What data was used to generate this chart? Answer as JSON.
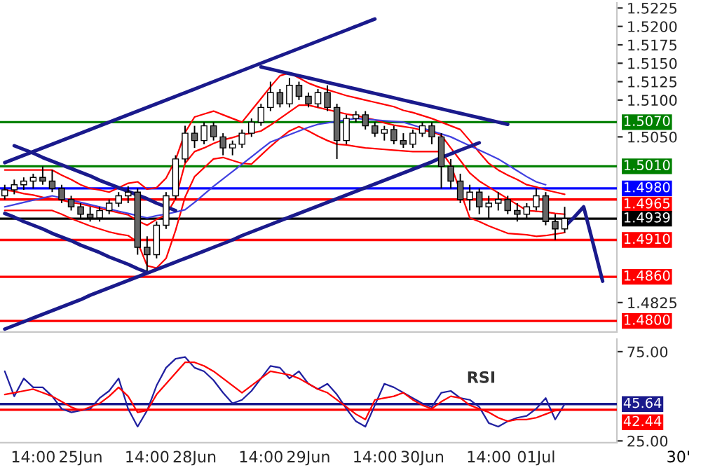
{
  "chart_data": [
    {
      "type": "candlestick",
      "ylim": [
        1.4785,
        1.5232
      ],
      "tick_labels": "y",
      "yticks": [
        {
          "value": 1.4825,
          "label": "1.4825"
        },
        {
          "value": 1.505,
          "label": "1.5050"
        },
        {
          "value": 1.51,
          "label": "1.5100"
        },
        {
          "value": 1.5125,
          "label": "1.5125"
        },
        {
          "value": 1.515,
          "label": "1.5150"
        },
        {
          "value": 1.5175,
          "label": "1.5175"
        },
        {
          "value": 1.52,
          "label": "1.5200"
        },
        {
          "value": 1.5225,
          "label": "1.5225"
        }
      ],
      "categories": [
        null,
        null,
        null,
        null,
        null,
        null,
        null,
        null,
        null,
        null,
        null,
        null,
        null,
        null,
        null,
        null,
        null,
        null,
        null,
        null,
        null,
        null,
        null,
        null,
        null,
        null,
        null,
        null,
        null,
        null,
        null,
        null,
        null,
        null,
        null,
        null,
        null,
        null,
        null,
        null,
        null,
        null,
        null,
        null,
        null,
        null,
        null,
        null,
        null,
        null,
        null,
        null,
        null,
        null,
        null,
        null,
        null,
        null,
        null,
        null,
        null,
        null,
        null,
        null,
        null
      ],
      "ohlc": [
        [
          1.497,
          1.4985,
          1.4965,
          1.4978
        ],
        [
          1.4978,
          1.4992,
          1.4972,
          1.4985
        ],
        [
          1.4985,
          1.4995,
          1.4978,
          1.499
        ],
        [
          1.499,
          1.5,
          1.498,
          1.4995
        ],
        [
          1.4995,
          1.501,
          1.4985,
          1.499
        ],
        [
          1.499,
          1.5005,
          1.4975,
          1.498
        ],
        [
          1.498,
          1.4985,
          1.496,
          1.4965
        ],
        [
          1.4965,
          1.497,
          1.495,
          1.4955
        ],
        [
          1.4955,
          1.496,
          1.494,
          1.4945
        ],
        [
          1.4945,
          1.4955,
          1.4935,
          1.494
        ],
        [
          1.494,
          1.4955,
          1.4935,
          1.495
        ],
        [
          1.495,
          1.4965,
          1.4945,
          1.496
        ],
        [
          1.496,
          1.4975,
          1.4955,
          1.497
        ],
        [
          1.497,
          1.4983,
          1.496,
          1.4975
        ],
        [
          1.4975,
          1.498,
          1.489,
          1.49
        ],
        [
          1.49,
          1.4915,
          1.4868,
          1.489
        ],
        [
          1.489,
          1.4935,
          1.4885,
          1.493
        ],
        [
          1.493,
          1.4975,
          1.4925,
          1.497
        ],
        [
          1.497,
          1.5025,
          1.4965,
          1.502
        ],
        [
          1.502,
          1.5065,
          1.5015,
          1.5055
        ],
        [
          1.5055,
          1.5065,
          1.5035,
          1.5045
        ],
        [
          1.5045,
          1.507,
          1.504,
          1.5065
        ],
        [
          1.5065,
          1.507,
          1.5045,
          1.505
        ],
        [
          1.505,
          1.5055,
          1.5025,
          1.5035
        ],
        [
          1.5035,
          1.5045,
          1.5025,
          1.504
        ],
        [
          1.504,
          1.506,
          1.5035,
          1.5055
        ],
        [
          1.5055,
          1.5075,
          1.505,
          1.507
        ],
        [
          1.507,
          1.5095,
          1.5065,
          1.509
        ],
        [
          1.509,
          1.5125,
          1.5085,
          1.511
        ],
        [
          1.511,
          1.5115,
          1.509,
          1.5095
        ],
        [
          1.5095,
          1.513,
          1.509,
          1.512
        ],
        [
          1.512,
          1.5125,
          1.51,
          1.5105
        ],
        [
          1.5105,
          1.511,
          1.509,
          1.5095
        ],
        [
          1.5095,
          1.5115,
          1.509,
          1.511
        ],
        [
          1.511,
          1.512,
          1.5085,
          1.509
        ],
        [
          1.509,
          1.5095,
          1.502,
          1.5045
        ],
        [
          1.5045,
          1.508,
          1.504,
          1.5075
        ],
        [
          1.5075,
          1.5085,
          1.507,
          1.508
        ],
        [
          1.508,
          1.5085,
          1.506,
          1.5065
        ],
        [
          1.5065,
          1.507,
          1.505,
          1.5055
        ],
        [
          1.5055,
          1.5065,
          1.5045,
          1.506
        ],
        [
          1.506,
          1.5065,
          1.504,
          1.5045
        ],
        [
          1.5045,
          1.5055,
          1.5035,
          1.504
        ],
        [
          1.504,
          1.506,
          1.5035,
          1.5055
        ],
        [
          1.5055,
          1.507,
          1.505,
          1.5065
        ],
        [
          1.5065,
          1.507,
          1.504,
          1.505
        ],
        [
          1.505,
          1.5055,
          1.498,
          1.501
        ],
        [
          1.501,
          1.502,
          1.498,
          1.499
        ],
        [
          1.499,
          1.5,
          1.496,
          1.4965
        ],
        [
          1.4965,
          1.4985,
          1.495,
          1.4975
        ],
        [
          1.4975,
          1.498,
          1.4945,
          1.4955
        ],
        [
          1.4955,
          1.497,
          1.494,
          1.496
        ],
        [
          1.496,
          1.4975,
          1.495,
          1.4965
        ],
        [
          1.4965,
          1.497,
          1.4945,
          1.495
        ],
        [
          1.495,
          1.496,
          1.4935,
          1.4945
        ],
        [
          1.4945,
          1.496,
          1.494,
          1.4955
        ],
        [
          1.4955,
          1.498,
          1.495,
          1.497
        ],
        [
          1.497,
          1.4975,
          1.493,
          1.4935
        ],
        [
          1.4935,
          1.4945,
          1.491,
          1.4925
        ],
        [
          1.4925,
          1.4955,
          1.492,
          1.4939
        ],
        null,
        null,
        null,
        null,
        null
      ],
      "series": [
        {
          "type": "line",
          "color": "#ff0000",
          "values": [
            1.5005,
            1.5005,
            1.5005,
            1.5005,
            1.5005,
            1.5005,
            1.4998,
            1.4992,
            1.4985,
            1.498,
            1.4978,
            1.4975,
            1.4981,
            1.4987,
            1.4989,
            1.4979,
            1.4981,
            1.4994,
            1.5019,
            1.5056,
            1.5077,
            1.5081,
            1.5085,
            1.508,
            1.5075,
            1.507,
            1.5086,
            1.5102,
            1.5118,
            1.5133,
            1.5137,
            1.513,
            1.5123,
            1.5118,
            1.5114,
            1.511,
            1.5106,
            1.5103,
            1.51,
            1.5097,
            1.5094,
            1.5091,
            1.5086,
            1.5083,
            1.5079,
            1.5075,
            1.507,
            1.5065,
            1.506,
            1.5045,
            1.5029,
            1.5014,
            1.5005,
            1.4998,
            1.4992,
            1.4985,
            1.4982,
            1.4978,
            1.4975,
            1.4972,
            null,
            null,
            null,
            null,
            null
          ]
        },
        {
          "type": "line",
          "color": "#ff0000",
          "values": [
            1.495,
            1.495,
            1.495,
            1.495,
            1.495,
            1.495,
            1.4945,
            1.4939,
            1.4934,
            1.4929,
            1.4925,
            1.4921,
            1.4918,
            1.4916,
            1.4907,
            1.4875,
            1.4872,
            1.4885,
            1.4923,
            1.4968,
            1.4996,
            1.5008,
            1.502,
            1.5022,
            1.5018,
            1.5014,
            1.5013,
            1.5025,
            1.5037,
            1.5048,
            1.5058,
            1.5064,
            1.5058,
            1.5051,
            1.5045,
            1.504,
            1.5039,
            1.5037,
            1.5035,
            1.5034,
            1.5033,
            1.5032,
            1.5031,
            1.503,
            1.503,
            1.503,
            1.503,
            1.5012,
            1.4976,
            1.494,
            1.4935,
            1.4929,
            1.4924,
            1.4919,
            1.4918,
            1.4917,
            1.4915,
            1.4916,
            1.4918,
            1.492,
            null,
            null,
            null,
            null,
            null
          ]
        },
        {
          "type": "line",
          "color": "#ff0000",
          "values": [
            1.4978,
            1.4976,
            1.4973,
            1.4971,
            1.4968,
            1.4966,
            1.4964,
            1.4961,
            1.4959,
            1.4956,
            1.4953,
            1.495,
            1.4947,
            1.4944,
            1.4936,
            1.493,
            1.4938,
            1.4944,
            1.4966,
            1.5014,
            1.503,
            1.5035,
            1.5041,
            1.5046,
            1.5049,
            1.5053,
            1.5055,
            1.5058,
            1.5066,
            1.5075,
            1.5084,
            1.5093,
            1.5093,
            1.509,
            1.5087,
            1.5084,
            1.5081,
            1.5079,
            1.5076,
            1.5073,
            1.5069,
            1.5066,
            1.5064,
            1.5062,
            1.5059,
            1.5057,
            1.5052,
            1.5035,
            1.5018,
            1.5001,
            1.499,
            1.4982,
            1.4974,
            1.4966,
            1.4958,
            1.495,
            1.4949,
            1.4948,
            1.4946,
            1.4945,
            null,
            null,
            null,
            null,
            null
          ]
        },
        {
          "type": "line",
          "color": "#4040e0",
          "values": [
            1.4955,
            1.4958,
            1.4961,
            1.4964,
            1.4967,
            1.497,
            1.4967,
            1.4964,
            1.4961,
            1.4958,
            1.4955,
            1.4952,
            1.4949,
            1.4946,
            1.4943,
            1.494,
            1.4943,
            1.4945,
            1.4948,
            1.4951,
            1.4961,
            1.4972,
            1.4983,
            1.4993,
            1.5003,
            1.5013,
            1.5023,
            1.5033,
            1.5043,
            1.5048,
            1.5053,
            1.5058,
            1.5063,
            1.5067,
            1.5069,
            1.5071,
            1.5073,
            1.5075,
            1.5074,
            1.5073,
            1.5072,
            1.5071,
            1.507,
            1.5066,
            1.5062,
            1.5058,
            1.5054,
            1.505,
            1.5044,
            1.5038,
            1.5032,
            1.5026,
            1.502,
            1.5012,
            1.5004,
            1.4996,
            1.4989,
            1.4985,
            null,
            null,
            null,
            null,
            null,
            null,
            null
          ]
        },
        {
          "type": "line",
          "color": "#1a1a8c",
          "values": [
            1.5015,
            1.502,
            1.5025,
            1.503,
            1.5035,
            1.504,
            1.5045,
            1.505,
            1.5055,
            1.506,
            1.5065,
            1.507,
            1.5075,
            1.508,
            1.5085,
            1.509,
            1.5095,
            1.51,
            1.5105,
            1.511,
            1.5115,
            1.512,
            1.5125,
            1.513,
            1.5135,
            1.514,
            1.5145,
            1.515,
            1.5155,
            1.516,
            1.5165,
            1.517,
            1.5175,
            1.518,
            1.5185,
            1.519,
            1.5195,
            1.52,
            1.5205,
            1.521,
            null,
            null,
            null,
            null,
            null,
            null,
            null,
            null,
            null,
            null,
            null,
            null,
            null,
            null,
            null,
            null,
            null,
            null,
            null,
            null,
            null,
            null,
            null,
            null,
            null
          ]
        },
        {
          "type": "line",
          "color": "#1a1a8c",
          "values": [
            1.4789,
            1.4794,
            1.4799,
            1.4804,
            1.4809,
            1.4814,
            1.4819,
            1.4824,
            1.4829,
            1.4835,
            1.484,
            1.4845,
            1.485,
            1.4855,
            1.486,
            1.4865,
            1.487,
            1.4875,
            1.488,
            1.4885,
            1.489,
            1.4895,
            1.49,
            1.4905,
            1.491,
            1.4916,
            1.4921,
            1.4926,
            1.4931,
            1.4936,
            1.4941,
            1.4946,
            1.4951,
            1.4956,
            1.4961,
            1.4966,
            1.4971,
            1.4976,
            1.4981,
            1.4986,
            1.4991,
            1.4996,
            1.5001,
            1.5006,
            1.5011,
            1.5016,
            1.5022,
            1.5027,
            1.5032,
            1.5037,
            1.5042,
            null,
            null,
            null,
            null,
            null,
            null,
            null,
            null,
            null,
            null,
            null,
            null,
            null,
            null
          ]
        },
        {
          "type": "line",
          "color": "#1a1a8c",
          "values": [
            null,
            1.5038,
            1.5033,
            1.5028,
            1.5022,
            1.5017,
            1.5012,
            1.5007,
            1.5002,
            1.4997,
            1.4991,
            1.4986,
            1.4981,
            1.4976,
            1.4971,
            1.4966,
            1.496,
            1.4955,
            1.495,
            null,
            null,
            null,
            null,
            null,
            null,
            null,
            null,
            null,
            null,
            null,
            null,
            null,
            null,
            null,
            null,
            null,
            null,
            null,
            null,
            null,
            null,
            null,
            null,
            null,
            null,
            null,
            null,
            null,
            null,
            null,
            null,
            null,
            null,
            null,
            null,
            null,
            null,
            null,
            null,
            null,
            null,
            null,
            null,
            null,
            null
          ]
        },
        {
          "type": "line",
          "color": "#1a1a8c",
          "values": [
            1.4946,
            1.4941,
            1.4935,
            1.493,
            1.4925,
            1.4919,
            1.4914,
            1.4909,
            1.4903,
            1.4898,
            1.4893,
            1.4887,
            1.4882,
            1.4877,
            1.4871,
            1.4866,
            null,
            null,
            null,
            null,
            null,
            null,
            null,
            null,
            null,
            null,
            null,
            null,
            null,
            null,
            null,
            null,
            null,
            null,
            null,
            null,
            null,
            null,
            null,
            null,
            null,
            null,
            null,
            null,
            null,
            null,
            null,
            null,
            null,
            null,
            null,
            null,
            null,
            null,
            null,
            null,
            null,
            null,
            null,
            null,
            null,
            null,
            null,
            null,
            null
          ]
        },
        {
          "type": "line",
          "color": "#1a1a8c",
          "values": [
            null,
            null,
            null,
            null,
            null,
            null,
            null,
            null,
            null,
            null,
            null,
            null,
            null,
            null,
            null,
            null,
            null,
            null,
            null,
            null,
            null,
            null,
            null,
            null,
            null,
            null,
            null,
            1.5145,
            1.5142,
            1.5139,
            1.5136,
            1.5133,
            1.513,
            1.5127,
            1.5124,
            1.5121,
            1.5118,
            1.5115,
            1.5112,
            1.5109,
            1.5106,
            1.5103,
            1.51,
            1.5097,
            1.5094,
            1.5091,
            1.5088,
            1.5085,
            1.5082,
            1.5079,
            1.5076,
            1.5073,
            1.507,
            1.5067,
            null,
            null,
            null,
            null,
            null,
            null,
            null,
            null,
            null,
            null,
            null
          ]
        },
        {
          "type": "line",
          "color": "#1a1a8c",
          "values": [
            null,
            null,
            null,
            null,
            null,
            null,
            null,
            null,
            null,
            null,
            null,
            null,
            null,
            null,
            null,
            null,
            null,
            null,
            null,
            null,
            null,
            null,
            null,
            null,
            null,
            null,
            null,
            null,
            null,
            null,
            null,
            null,
            null,
            null,
            null,
            null,
            null,
            null,
            null,
            null,
            null,
            null,
            null,
            null,
            null,
            null,
            null,
            null,
            null,
            null,
            null,
            null,
            null,
            null,
            null,
            null,
            null,
            null,
            null,
            1.4928,
            1.4941,
            1.4955,
            1.4905,
            1.4854,
            null
          ]
        }
      ],
      "ref_lines": [
        {
          "axis": "y",
          "value": 1.507,
          "label": "1.5070",
          "color": "#008000"
        },
        {
          "axis": "y",
          "value": 1.501,
          "label": "1.5010",
          "color": "#008000"
        },
        {
          "axis": "y",
          "value": 1.498,
          "label": "1.4980",
          "color": "#0000ff"
        },
        {
          "axis": "y",
          "value": 1.4965,
          "label": "1.4965",
          "color": "#ff0000"
        },
        {
          "axis": "y",
          "value": 1.4939,
          "label": "1.4939",
          "color": "#000000"
        },
        {
          "axis": "y",
          "value": 1.491,
          "label": "1.4910",
          "color": "#ff0000"
        },
        {
          "axis": "y",
          "value": 1.486,
          "label": "1.4860",
          "color": "#ff0000"
        },
        {
          "axis": "y",
          "value": 1.48,
          "label": "1.4800",
          "color": "#ff0000"
        }
      ]
    },
    {
      "type": "line",
      "ylim": [
        24,
        82
      ],
      "yticks": [
        {
          "value": 25,
          "label": "25.00"
        },
        {
          "value": 75,
          "label": "75.00"
        }
      ],
      "categories": [
        null,
        null,
        null,
        "14:00",
        null,
        null,
        null,
        null,
        "25Jun",
        null,
        null,
        null,
        null,
        null,
        null,
        "14:00",
        null,
        null,
        null,
        null,
        "28Jun",
        null,
        null,
        null,
        null,
        null,
        null,
        "14:00",
        null,
        null,
        null,
        null,
        "29Jun",
        null,
        null,
        null,
        null,
        null,
        null,
        "14:00",
        null,
        null,
        null,
        null,
        "30Jun",
        null,
        null,
        null,
        null,
        null,
        null,
        "14:00",
        null,
        null,
        null,
        null,
        "01Jul",
        null,
        null,
        null,
        null,
        null,
        null,
        null,
        null
      ],
      "series": [
        {
          "color": "#2020a0",
          "values": [
            64,
            50,
            60,
            55,
            55,
            50,
            43,
            41,
            42,
            43,
            49,
            53,
            60,
            43,
            33,
            42,
            56,
            66,
            71,
            72,
            66,
            64,
            59,
            52,
            46,
            48,
            53,
            60,
            67,
            66,
            60,
            64,
            57,
            54,
            57,
            51,
            43,
            36,
            33,
            45,
            57,
            55,
            52,
            49,
            46,
            44,
            52,
            53,
            49,
            48,
            44,
            35,
            33,
            36,
            38,
            39,
            43,
            49,
            37,
            45.64,
            null,
            null,
            null,
            null,
            null
          ]
        },
        {
          "color": "#ff0000",
          "values": [
            51,
            52,
            53,
            54,
            52,
            50,
            47,
            44,
            42,
            44,
            46,
            50,
            55,
            50,
            41,
            42,
            51,
            57,
            63,
            69,
            69,
            67,
            64,
            60,
            56,
            52,
            56,
            60,
            64,
            63,
            62,
            60,
            57,
            54,
            52,
            48,
            44,
            40,
            37,
            48,
            49,
            50,
            52,
            48,
            45,
            43,
            47,
            50,
            49,
            45,
            43,
            41,
            38,
            36,
            37,
            37,
            38,
            40,
            42,
            42.44,
            null,
            null,
            null,
            null,
            null
          ]
        }
      ],
      "ref_lines": [
        {
          "axis": "y",
          "value": 45.64,
          "label": "45.64",
          "color": "#1a1a8c"
        },
        {
          "axis": "y",
          "value": 42.44,
          "label": "42.44",
          "color": "#ff0000"
        }
      ],
      "annotations": [
        "RSI",
        "30'"
      ]
    }
  ]
}
